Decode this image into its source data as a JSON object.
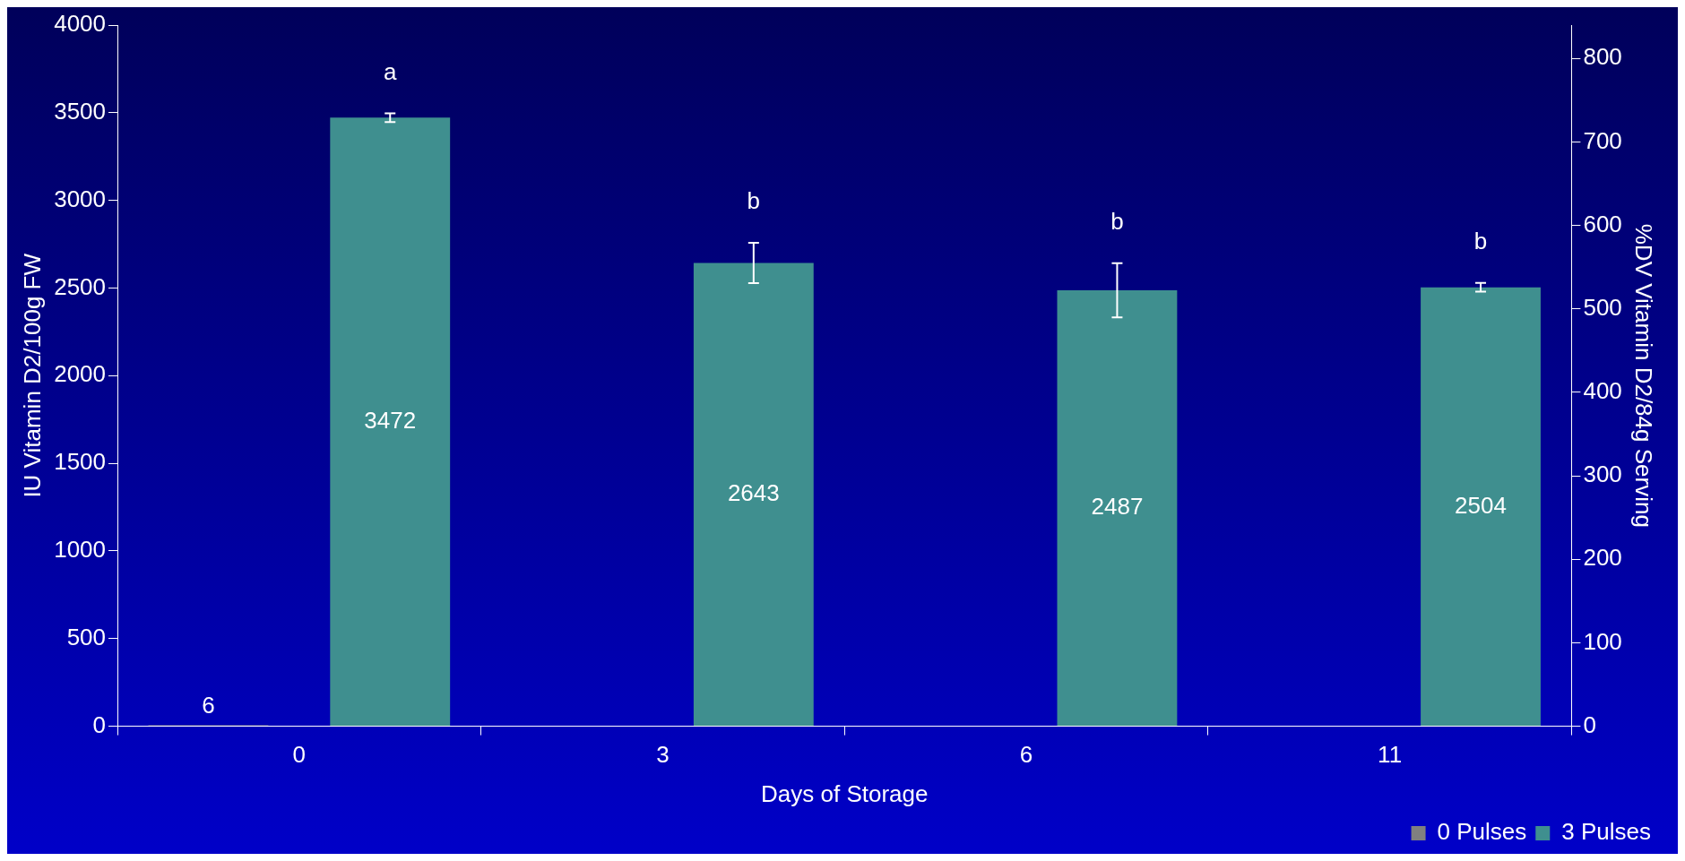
{
  "chart_data": {
    "type": "bar",
    "categories": [
      "0",
      "3",
      "6",
      "11"
    ],
    "series": [
      {
        "name": "0 Pulses",
        "color": "#808080",
        "values": [
          6,
          null,
          null,
          null
        ],
        "errors": [
          null,
          null,
          null,
          null
        ]
      },
      {
        "name": "3 Pulses",
        "color": "#3f8f8f",
        "values": [
          3472,
          2643,
          2487,
          2504
        ],
        "errors": [
          25,
          115,
          155,
          25
        ]
      }
    ],
    "xlabel": "Days of Storage",
    "ylabel": "IU Vitamin D2/100g FW",
    "y2label": "%DV Vitamin D2/84g Serving",
    "ylim": [
      0,
      4000
    ],
    "yticks": [
      0,
      500,
      1000,
      1500,
      2000,
      2500,
      3000,
      3500,
      4000
    ],
    "y2lim": [
      0,
      840
    ],
    "y2ticks": [
      0,
      100,
      200,
      300,
      400,
      500,
      600,
      700,
      800
    ],
    "annotations": [
      "a",
      "b",
      "b",
      "b"
    ],
    "data_labels": true,
    "grid": false,
    "legend": "bottom right"
  }
}
